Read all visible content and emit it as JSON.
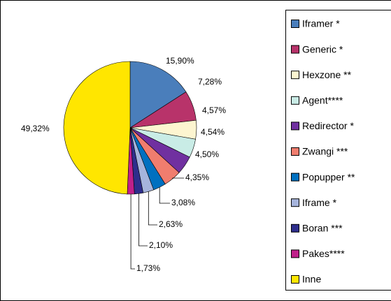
{
  "chart_data": {
    "type": "pie",
    "categories": [
      "Iframer *",
      "Generic *",
      "Hexzone **",
      "Agent****",
      "Redirector *",
      "Zwangi ***",
      "Popupper **",
      "Iframe *",
      "Boran ***",
      "Pakes****",
      "Inne"
    ],
    "values": [
      15.9,
      7.28,
      4.57,
      4.54,
      4.5,
      4.35,
      3.08,
      2.63,
      2.1,
      1.73,
      49.32
    ],
    "value_labels": [
      "15,90%",
      "7,28%",
      "4,57%",
      "4,54%",
      "4,50%",
      "4,35%",
      "3,08%",
      "2,63%",
      "2,10%",
      "1,73%",
      "49,32%"
    ],
    "colors": [
      "#4a7ebb",
      "#b8336a",
      "#fdf5d0",
      "#c9ece6",
      "#7030a0",
      "#f07d6e",
      "#0070c0",
      "#a6b4dc",
      "#2e2e8c",
      "#c0208a",
      "#ffe600"
    ]
  }
}
